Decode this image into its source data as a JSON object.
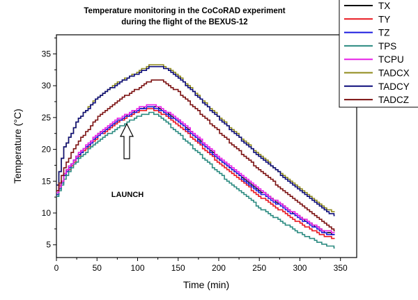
{
  "chart_data": {
    "type": "line",
    "title": [
      "Temperature monitoring in the CoCoRAD experiment",
      "during the flight of the BEXUS-12"
    ],
    "xlabel": "Time (min)",
    "ylabel": "Temperature (°C)",
    "xlim": [
      0,
      370
    ],
    "ylim": [
      3,
      38
    ],
    "xticks": [
      0,
      50,
      100,
      150,
      200,
      250,
      300,
      350
    ],
    "yticks": [
      5,
      10,
      15,
      20,
      25,
      30,
      35
    ],
    "grid": false,
    "legend": "top-right",
    "annotation": {
      "text": "LAUNCH",
      "x": 86,
      "y": 18
    },
    "series": [
      {
        "name": "TX",
        "color": "#000000",
        "points": [
          [
            0,
            13
          ],
          [
            10,
            16.5
          ],
          [
            25,
            19
          ],
          [
            50,
            22.3
          ],
          [
            75,
            24.5
          ],
          [
            100,
            26.3
          ],
          [
            115,
            26.8
          ],
          [
            125,
            26.5
          ],
          [
            150,
            24.5
          ],
          [
            200,
            18.5
          ],
          [
            250,
            13.5
          ],
          [
            300,
            9.2
          ],
          [
            330,
            7
          ],
          [
            343,
            6.5
          ]
        ]
      },
      {
        "name": "TY",
        "color": "#e8171f",
        "points": [
          [
            0,
            13.5
          ],
          [
            10,
            16
          ],
          [
            25,
            18.7
          ],
          [
            50,
            22
          ],
          [
            75,
            24.3
          ],
          [
            100,
            26
          ],
          [
            115,
            26.4
          ],
          [
            125,
            26
          ],
          [
            150,
            23.8
          ],
          [
            200,
            17.8
          ],
          [
            250,
            12.6
          ],
          [
            300,
            8.3
          ],
          [
            330,
            6.3
          ],
          [
            343,
            6
          ]
        ]
      },
      {
        "name": "TZ",
        "color": "#1a1adf",
        "points": [
          [
            0,
            12.8
          ],
          [
            10,
            16.2
          ],
          [
            25,
            18.9
          ],
          [
            50,
            22.2
          ],
          [
            75,
            24.5
          ],
          [
            100,
            26.2
          ],
          [
            115,
            26.7
          ],
          [
            125,
            26.3
          ],
          [
            150,
            24.3
          ],
          [
            200,
            18.3
          ],
          [
            250,
            13.2
          ],
          [
            300,
            9
          ],
          [
            330,
            6.8
          ],
          [
            343,
            6.5
          ]
        ]
      },
      {
        "name": "TPS",
        "color": "#2a8a80",
        "points": [
          [
            0,
            12.5
          ],
          [
            10,
            15.6
          ],
          [
            25,
            18.3
          ],
          [
            50,
            21.3
          ],
          [
            75,
            23.4
          ],
          [
            100,
            25.2
          ],
          [
            115,
            25.8
          ],
          [
            125,
            25.4
          ],
          [
            150,
            22.5
          ],
          [
            200,
            16.2
          ],
          [
            250,
            10.8
          ],
          [
            300,
            6.8
          ],
          [
            330,
            5
          ],
          [
            343,
            4.5
          ]
        ]
      },
      {
        "name": "TCPU",
        "color": "#e61fe6",
        "points": [
          [
            0,
            13.2
          ],
          [
            10,
            16.4
          ],
          [
            25,
            19.1
          ],
          [
            50,
            22.5
          ],
          [
            75,
            24.8
          ],
          [
            100,
            26.5
          ],
          [
            115,
            27
          ],
          [
            125,
            26.7
          ],
          [
            150,
            24.7
          ],
          [
            200,
            18.7
          ],
          [
            250,
            13.6
          ],
          [
            300,
            9.3
          ],
          [
            330,
            7.1
          ],
          [
            343,
            7
          ]
        ]
      },
      {
        "name": "TADCX",
        "color": "#8f8a1a",
        "points": [
          [
            0,
            14.5
          ],
          [
            8,
            20
          ],
          [
            25,
            24.5
          ],
          [
            50,
            28.2
          ],
          [
            75,
            30.5
          ],
          [
            100,
            32.2
          ],
          [
            115,
            33.3
          ],
          [
            130,
            33.3
          ],
          [
            150,
            31.5
          ],
          [
            200,
            25
          ],
          [
            250,
            19
          ],
          [
            300,
            13.8
          ],
          [
            330,
            10.8
          ],
          [
            343,
            10
          ]
        ]
      },
      {
        "name": "TADCY",
        "color": "#0c0c7a",
        "points": [
          [
            0,
            14.5
          ],
          [
            8,
            20
          ],
          [
            25,
            24.5
          ],
          [
            50,
            28.1
          ],
          [
            75,
            30.4
          ],
          [
            100,
            32
          ],
          [
            115,
            33
          ],
          [
            130,
            33
          ],
          [
            150,
            31.3
          ],
          [
            200,
            24.8
          ],
          [
            250,
            18.8
          ],
          [
            300,
            13.5
          ],
          [
            330,
            10.5
          ],
          [
            343,
            9.5
          ]
        ]
      },
      {
        "name": "TADCZ",
        "color": "#7b1010",
        "points": [
          [
            0,
            13.5
          ],
          [
            10,
            17.5
          ],
          [
            25,
            21
          ],
          [
            50,
            25
          ],
          [
            75,
            27.7
          ],
          [
            100,
            29.6
          ],
          [
            115,
            30.8
          ],
          [
            130,
            30.8
          ],
          [
            150,
            29
          ],
          [
            200,
            22.7
          ],
          [
            250,
            16.7
          ],
          [
            300,
            11.3
          ],
          [
            330,
            8.3
          ],
          [
            343,
            7.2
          ]
        ]
      }
    ]
  }
}
